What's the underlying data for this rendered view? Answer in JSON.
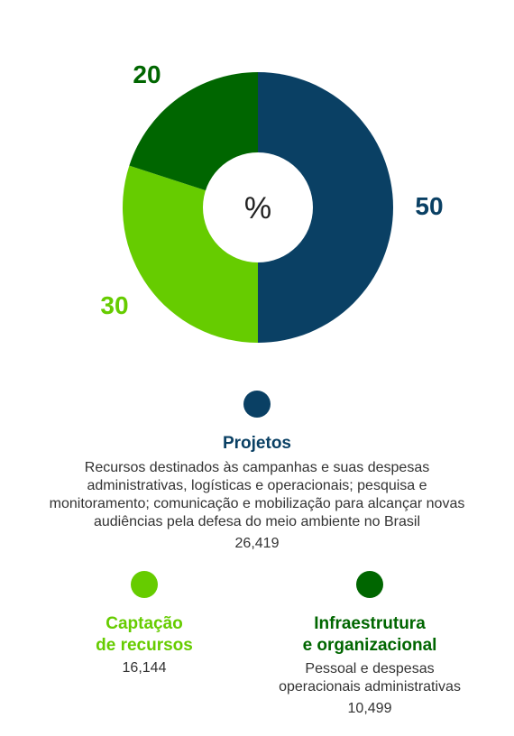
{
  "chart_data": {
    "type": "pie",
    "center_label": "%",
    "slices": [
      {
        "name": "Projetos",
        "value": 50,
        "label": "50",
        "color": "#0a4064"
      },
      {
        "name": "Captação de recursos",
        "value": 30,
        "label": "30",
        "color": "#66cc00"
      },
      {
        "name": "Infraestrutura e organizacional",
        "value": 20,
        "label": "20",
        "color": "#006600"
      }
    ]
  },
  "legend": {
    "projetos": {
      "title": "Projetos",
      "description": "Recursos destinados às campanhas e suas despesas administrativas, logísticas e operacionais; pesquisa e monitoramento; comunicação e mobilização para alcançar novas audiências pela defesa do meio ambiente no Brasil",
      "value": "26,419",
      "color": "#0a4064"
    },
    "captacao": {
      "title_line1": "Captação",
      "title_line2": "de recursos",
      "value": "16,144",
      "color": "#66cc00"
    },
    "infra": {
      "title_line1": "Infraestrutura",
      "title_line2": "e organizacional",
      "description_line1": "Pessoal e despesas",
      "description_line2": "operacionais administrativas",
      "value": "10,499",
      "color": "#006600"
    }
  }
}
